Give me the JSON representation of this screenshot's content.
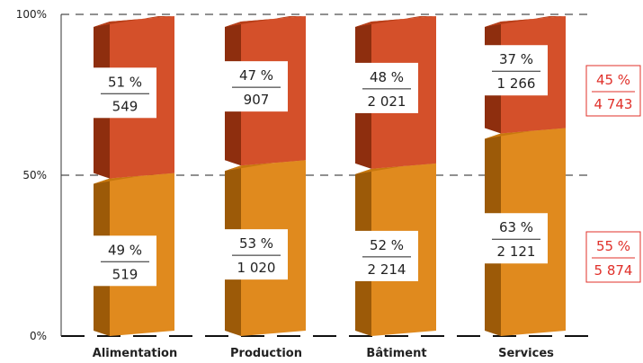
{
  "chart_data": {
    "type": "bar",
    "stacked": true,
    "percent_stacked": true,
    "three_d": true,
    "grid": "dashed horizontal at 0%, 50%, 100%",
    "y_ticks": [
      "0%",
      "50%",
      "100%"
    ],
    "ylim": [
      0,
      100
    ],
    "categories": [
      "Alimentation",
      "Production",
      "Bâtiment",
      "Services"
    ],
    "series": [
      {
        "color": "#e08a1e",
        "values": [
          49,
          53,
          52,
          63
        ],
        "pct_labels": [
          "49 %",
          "53 %",
          "52 %",
          "63 %"
        ],
        "count_labels": [
          "519",
          "1 020",
          "2 214",
          "2 121"
        ]
      },
      {
        "color": "#d4502a",
        "values": [
          51,
          47,
          48,
          37
        ],
        "pct_labels": [
          "51 %",
          "47 %",
          "48 %",
          "37 %"
        ],
        "count_labels": [
          "549",
          "907",
          "2 021",
          "1 266"
        ]
      }
    ],
    "totals": [
      {
        "series_index": 0,
        "pct_label": "55 %",
        "count_label": "5 874"
      },
      {
        "series_index": 1,
        "pct_label": "45 %",
        "count_label": "4 743"
      }
    ],
    "colors": {
      "bottom_front": "#e08a1e",
      "bottom_side": "#9c5a08",
      "bottom_top": "#c8780e",
      "top_front": "#d4502a",
      "top_side": "#8e2e0e",
      "top_top": "#b83e18",
      "total_text": "#e0302a",
      "total_border": "#e0302a"
    }
  }
}
